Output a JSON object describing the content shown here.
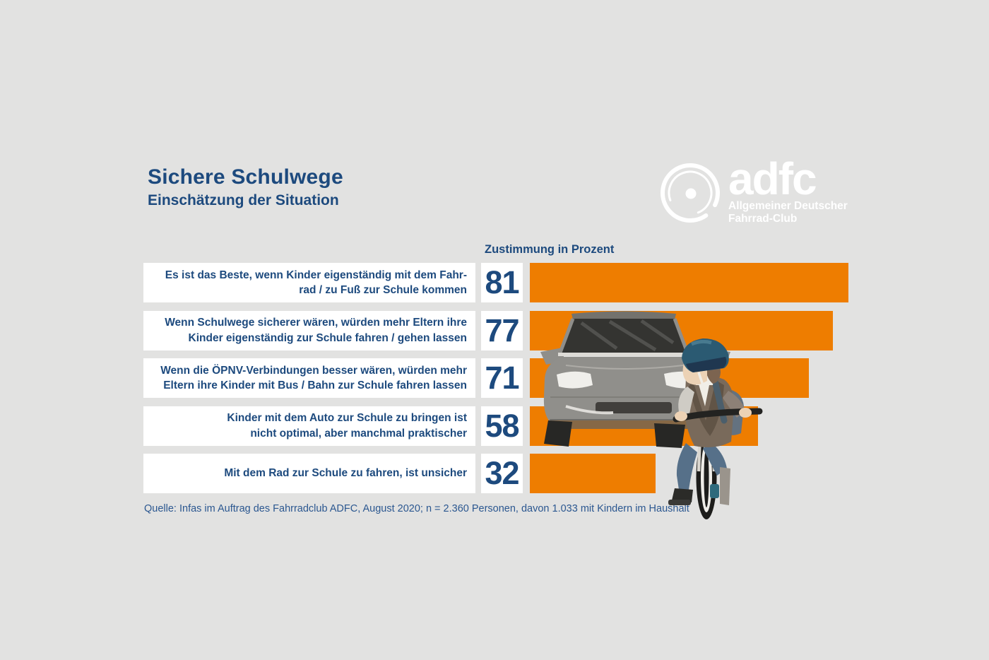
{
  "header": {
    "title": "Sichere Schulwege",
    "subtitle": "Einschätzung der Situation"
  },
  "logo": {
    "brand": "adfc",
    "subline1": "Allgemeiner Deutscher",
    "subline2": "Fahrrad-Club"
  },
  "chart": {
    "column_header": "Zustimmung in Prozent",
    "rows": [
      {
        "line1": "Es ist das Beste, wenn Kinder eigenständig mit dem Fahr-",
        "line2": "rad / zu Fuß zur Schule kommen"
      },
      {
        "line1": "Wenn Schulwege sicherer wären, würden mehr Eltern ihre",
        "line2": "Kinder eigenständig zur Schule fahren / gehen lassen"
      },
      {
        "line1": "Wenn die ÖPNV-Verbindungen besser wären, würden mehr",
        "line2": "Eltern ihre Kinder mit Bus / Bahn zur Schule fahren lassen"
      },
      {
        "line1": "Kinder mit dem Auto zur Schule zu bringen ist",
        "line2": "nicht optimal, aber manchmal praktischer"
      },
      {
        "line1": "Mit dem Rad zur Schule zu fahren, ist unsicher",
        "line2": ""
      }
    ]
  },
  "chart_data": {
    "type": "bar",
    "orientation": "horizontal",
    "title": "Sichere Schulwege – Einschätzung der Situation",
    "value_axis_label": "Zustimmung in Prozent",
    "xlim": [
      0,
      100
    ],
    "grid": false,
    "legend": false,
    "categories": [
      "Es ist das Beste, wenn Kinder eigenständig mit dem Fahrrad / zu Fuß zur Schule kommen",
      "Wenn Schulwege sicherer wären, würden mehr Eltern ihre Kinder eigenständig zur Schule fahren / gehen lassen",
      "Wenn die ÖPNV-Verbindungen besser wären, würden mehr Eltern ihre Kinder mit Bus / Bahn zur Schule fahren lassen",
      "Kinder mit dem Auto zur Schule zu bringen ist nicht optimal, aber manchmal praktischer",
      "Mit dem Rad zur Schule zu fahren, ist unsicher"
    ],
    "values": [
      81,
      77,
      71,
      58,
      32
    ],
    "bar_color": "#ee7d00"
  },
  "footer": {
    "source": "Quelle: Infas im Auftrag des Fahrradclub ADFC, August 2020; n = 2.360 Personen, davon 1.033 mit Kindern im Haushalt"
  },
  "colors": {
    "background": "#e2e2e1",
    "box_white": "#ffffff",
    "bar_orange": "#ee7d00",
    "text_blue": "#1d4a7e",
    "logo_white": "#ffffff"
  }
}
